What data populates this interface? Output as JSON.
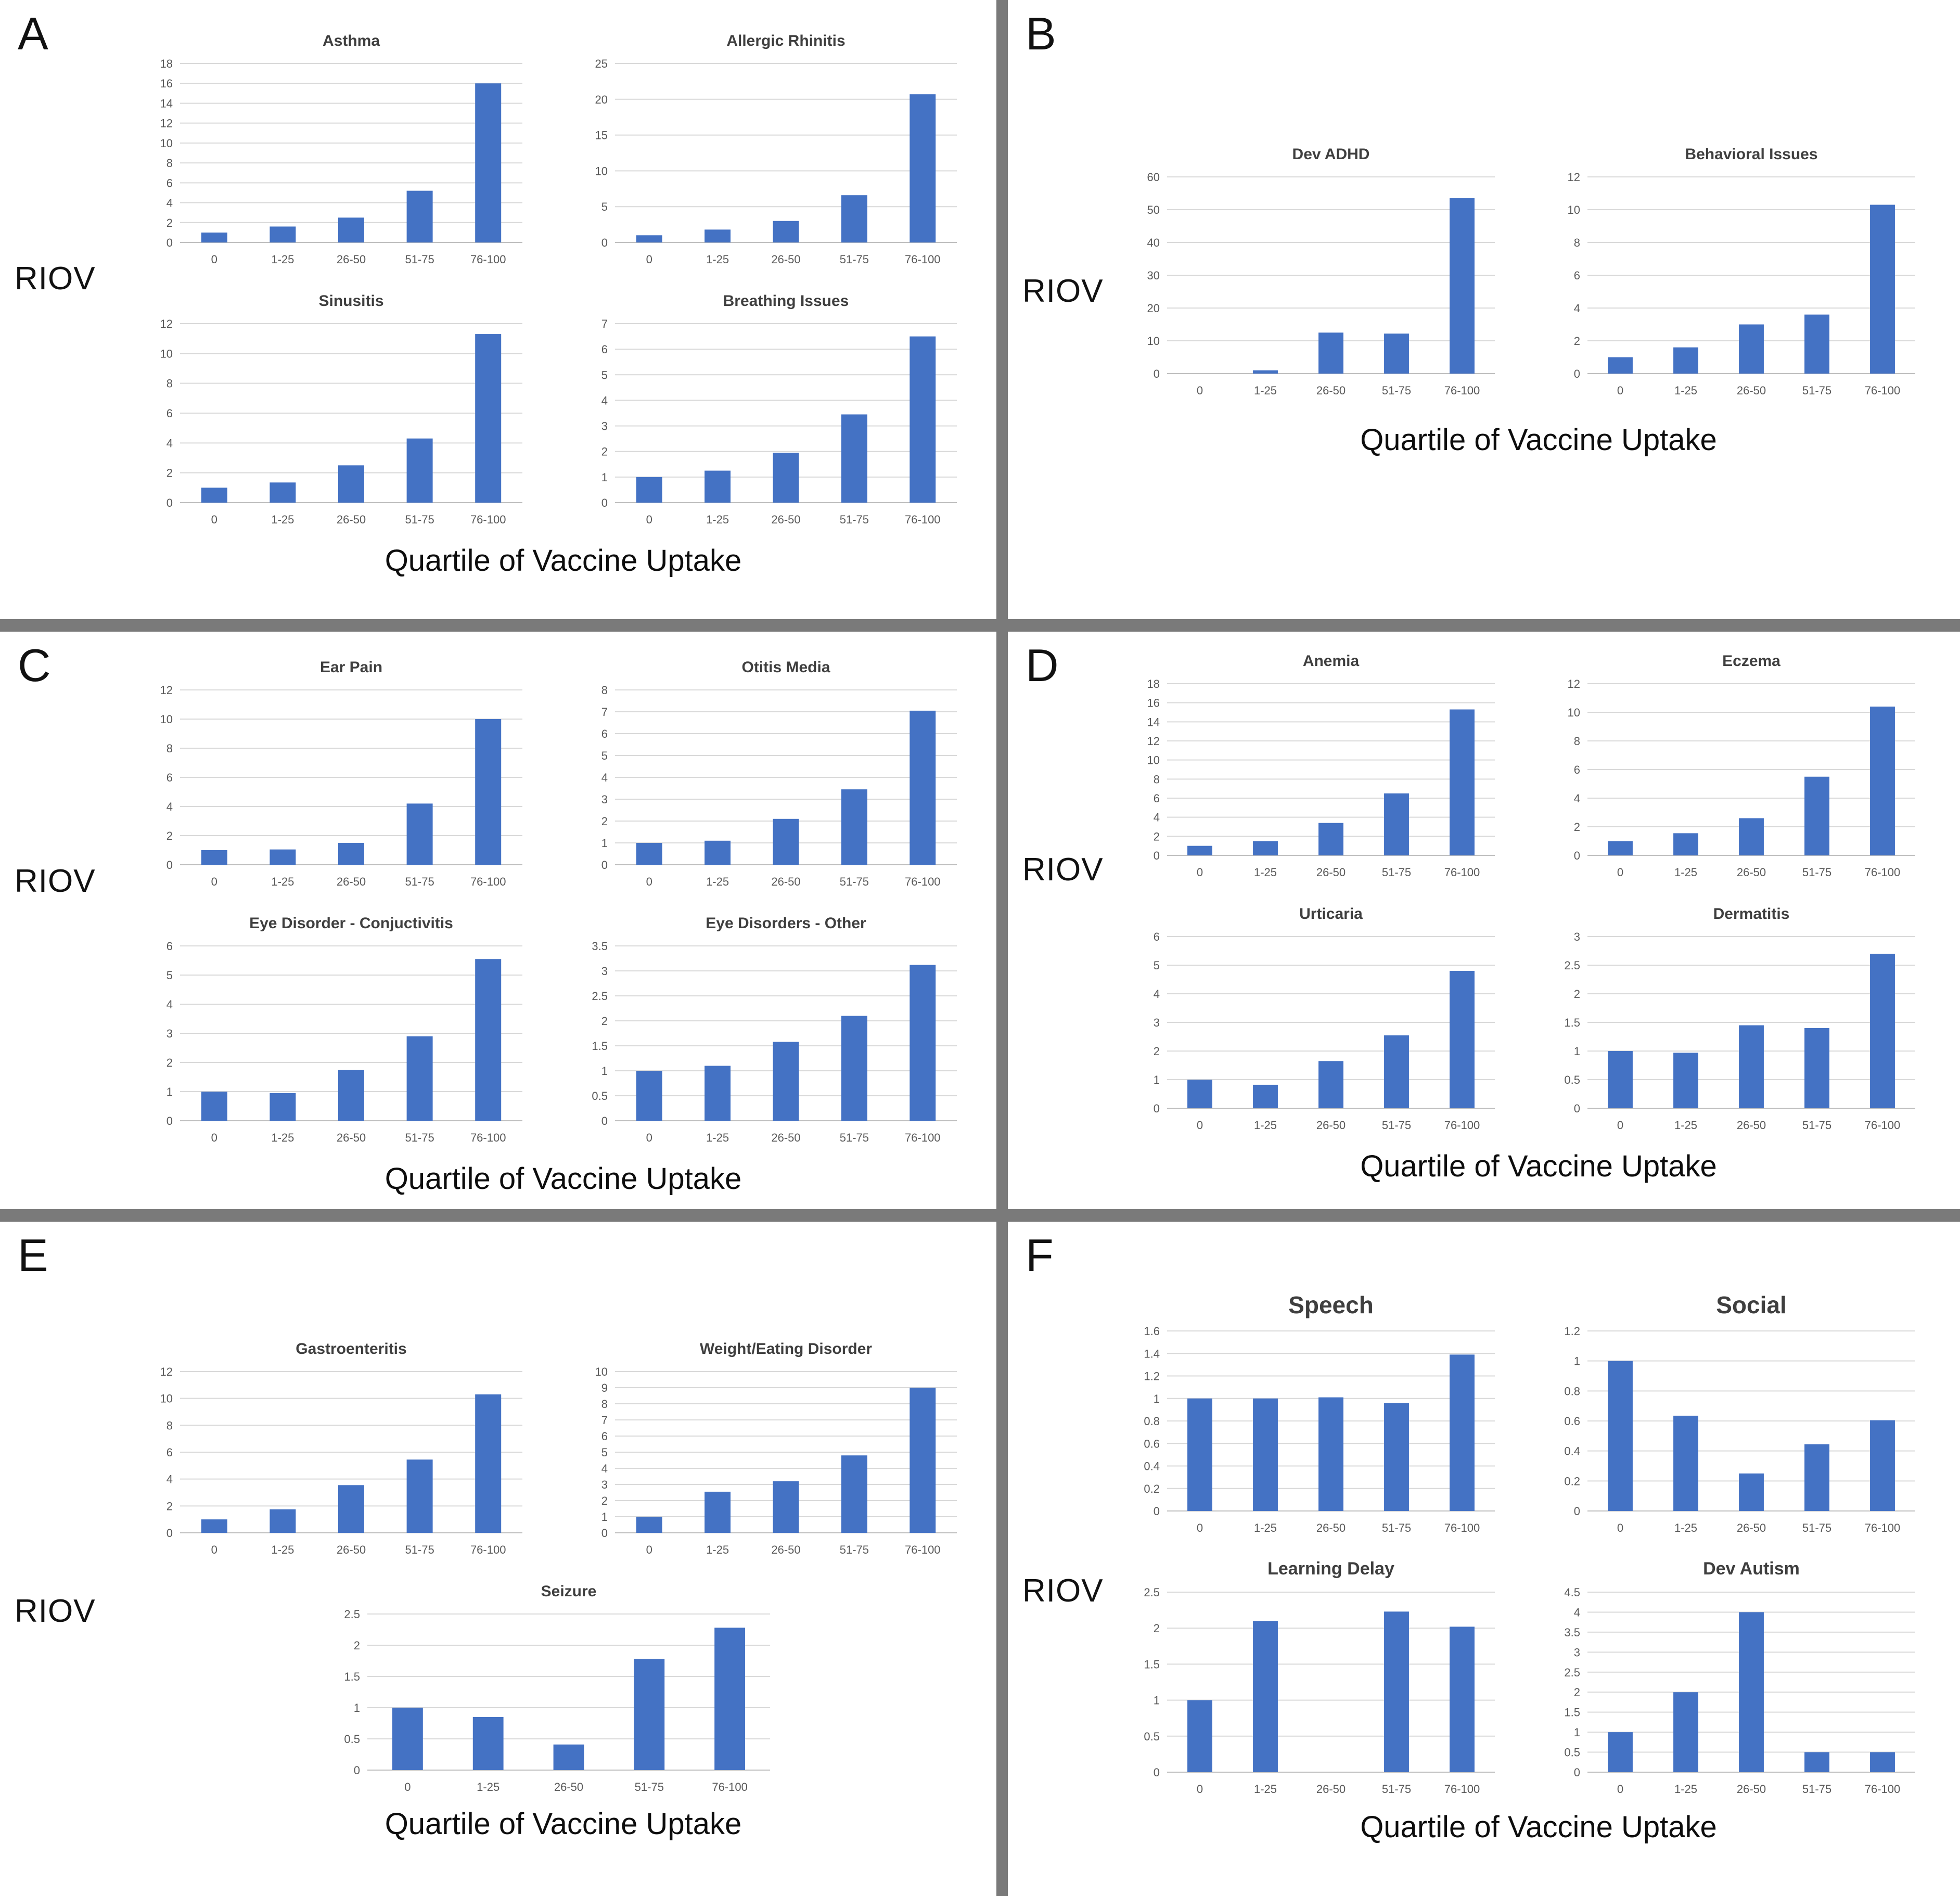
{
  "figure": {
    "xlabel": "Quartile of Vaccine Uptake",
    "ylabel": "RIOV",
    "bar_color": "#4472c4",
    "divider_color": "#7a7a7a",
    "gridline_color": "#d9d9d9",
    "axis_color": "#bfbfbf",
    "tick_color": "#595959",
    "title_color": "#3f3f3f",
    "categories": [
      "0",
      "1-25",
      "26-50",
      "51-75",
      "76-100"
    ]
  },
  "panels": [
    {
      "label": "A",
      "charts": [
        "asthma",
        "allergic_rhinitis",
        "sinusitis",
        "breathing_issues"
      ]
    },
    {
      "label": "B",
      "charts": [
        "dev_adhd",
        "behavioral_issues"
      ]
    },
    {
      "label": "C",
      "charts": [
        "ear_pain",
        "otitis_media",
        "eye_conjuctivitis",
        "eye_other"
      ]
    },
    {
      "label": "D",
      "charts": [
        "anemia",
        "eczema",
        "urticaria",
        "dermatitis"
      ]
    },
    {
      "label": "E",
      "charts": [
        "gastroenteritis",
        "weight_eating",
        "seizure"
      ]
    },
    {
      "label": "F",
      "charts": [
        "speech",
        "social",
        "learning_delay",
        "dev_autism"
      ]
    }
  ],
  "chart_data": [
    {
      "id": "asthma",
      "type": "bar",
      "title": "Asthma",
      "panel": "A",
      "categories": [
        "0",
        "1-25",
        "26-50",
        "51-75",
        "76-100"
      ],
      "values": [
        1,
        1.6,
        2.5,
        5.2,
        16
      ],
      "ylim": [
        0,
        18
      ],
      "ystep": 2
    },
    {
      "id": "allergic_rhinitis",
      "type": "bar",
      "title": "Allergic Rhinitis",
      "panel": "A",
      "categories": [
        "0",
        "1-25",
        "26-50",
        "51-75",
        "76-100"
      ],
      "values": [
        1,
        1.8,
        3,
        6.6,
        20.7
      ],
      "ylim": [
        0,
        25
      ],
      "ystep": 5
    },
    {
      "id": "sinusitis",
      "type": "bar",
      "title": "Sinusitis",
      "panel": "A",
      "categories": [
        "0",
        "1-25",
        "26-50",
        "51-75",
        "76-100"
      ],
      "values": [
        1,
        1.35,
        2.5,
        4.3,
        11.3
      ],
      "ylim": [
        0,
        12
      ],
      "ystep": 2
    },
    {
      "id": "breathing_issues",
      "type": "bar",
      "title": "Breathing Issues",
      "panel": "A",
      "categories": [
        "0",
        "1-25",
        "26-50",
        "51-75",
        "76-100"
      ],
      "values": [
        1,
        1.25,
        1.95,
        3.45,
        6.5
      ],
      "ylim": [
        0,
        7
      ],
      "ystep": 1
    },
    {
      "id": "dev_adhd",
      "type": "bar",
      "title": "Dev ADHD",
      "panel": "B",
      "categories": [
        "0",
        "1-25",
        "26-50",
        "51-75",
        "76-100"
      ],
      "values": [
        0,
        1,
        12.5,
        12.2,
        53.5
      ],
      "ylim": [
        0,
        60
      ],
      "ystep": 10
    },
    {
      "id": "behavioral_issues",
      "type": "bar",
      "title": "Behavioral Issues",
      "panel": "B",
      "categories": [
        "0",
        "1-25",
        "26-50",
        "51-75",
        "76-100"
      ],
      "values": [
        1,
        1.6,
        3,
        3.6,
        10.3
      ],
      "ylim": [
        0,
        12
      ],
      "ystep": 2
    },
    {
      "id": "ear_pain",
      "type": "bar",
      "title": "Ear Pain",
      "panel": "C",
      "categories": [
        "0",
        "1-25",
        "26-50",
        "51-75",
        "76-100"
      ],
      "values": [
        1,
        1.05,
        1.5,
        4.2,
        10
      ],
      "ylim": [
        0,
        12
      ],
      "ystep": 2
    },
    {
      "id": "otitis_media",
      "type": "bar",
      "title": "Otitis Media",
      "panel": "C",
      "categories": [
        "0",
        "1-25",
        "26-50",
        "51-75",
        "76-100"
      ],
      "values": [
        1,
        1.1,
        2.1,
        3.45,
        7.05
      ],
      "ylim": [
        0,
        8
      ],
      "ystep": 1
    },
    {
      "id": "eye_conjuctivitis",
      "type": "bar",
      "title": "Eye Disorder - Conjuctivitis",
      "panel": "C",
      "categories": [
        "0",
        "1-25",
        "26-50",
        "51-75",
        "76-100"
      ],
      "values": [
        1,
        0.95,
        1.75,
        2.9,
        5.55
      ],
      "ylim": [
        0,
        6
      ],
      "ystep": 1
    },
    {
      "id": "eye_other",
      "type": "bar",
      "title": "Eye Disorders - Other",
      "panel": "C",
      "categories": [
        "0",
        "1-25",
        "26-50",
        "51-75",
        "76-100"
      ],
      "values": [
        1,
        1.1,
        1.58,
        2.1,
        3.12
      ],
      "ylim": [
        0,
        3.5
      ],
      "ystep": 0.5
    },
    {
      "id": "anemia",
      "type": "bar",
      "title": "Anemia",
      "panel": "D",
      "categories": [
        "0",
        "1-25",
        "26-50",
        "51-75",
        "76-100"
      ],
      "values": [
        1,
        1.5,
        3.4,
        6.5,
        15.3
      ],
      "ylim": [
        0,
        18
      ],
      "ystep": 2
    },
    {
      "id": "eczema",
      "type": "bar",
      "title": "Eczema",
      "panel": "D",
      "categories": [
        "0",
        "1-25",
        "26-50",
        "51-75",
        "76-100"
      ],
      "values": [
        1,
        1.55,
        2.6,
        5.5,
        10.4
      ],
      "ylim": [
        0,
        12
      ],
      "ystep": 2
    },
    {
      "id": "urticaria",
      "type": "bar",
      "title": "Urticaria",
      "panel": "D",
      "categories": [
        "0",
        "1-25",
        "26-50",
        "51-75",
        "76-100"
      ],
      "values": [
        1,
        0.82,
        1.65,
        2.55,
        4.8
      ],
      "ylim": [
        0,
        6
      ],
      "ystep": 1
    },
    {
      "id": "dermatitis",
      "type": "bar",
      "title": "Dermatitis",
      "panel": "D",
      "categories": [
        "0",
        "1-25",
        "26-50",
        "51-75",
        "76-100"
      ],
      "values": [
        1,
        0.97,
        1.45,
        1.4,
        2.7
      ],
      "ylim": [
        0,
        3
      ],
      "ystep": 0.5
    },
    {
      "id": "gastroenteritis",
      "type": "bar",
      "title": "Gastroenteritis",
      "panel": "E",
      "categories": [
        "0",
        "1-25",
        "26-50",
        "51-75",
        "76-100"
      ],
      "values": [
        1,
        1.75,
        3.55,
        5.45,
        10.3
      ],
      "ylim": [
        0,
        12
      ],
      "ystep": 2
    },
    {
      "id": "weight_eating",
      "type": "bar",
      "title": "Weight/Eating Disorder",
      "panel": "E",
      "categories": [
        "0",
        "1-25",
        "26-50",
        "51-75",
        "76-100"
      ],
      "values": [
        1,
        2.55,
        3.2,
        4.8,
        9
      ],
      "ylim": [
        0,
        10
      ],
      "ystep": 1
    },
    {
      "id": "seizure",
      "type": "bar",
      "title": "Seizure",
      "panel": "E",
      "categories": [
        "0",
        "1-25",
        "26-50",
        "51-75",
        "76-100"
      ],
      "values": [
        1,
        0.85,
        0.41,
        1.78,
        2.28
      ],
      "ylim": [
        0,
        2.5
      ],
      "ystep": 0.5
    },
    {
      "id": "speech",
      "type": "bar",
      "title": "Speech",
      "panel": "F",
      "title_size": 46,
      "categories": [
        "0",
        "1-25",
        "26-50",
        "51-75",
        "76-100"
      ],
      "values": [
        1,
        1,
        1.01,
        0.96,
        1.39
      ],
      "ylim": [
        0,
        1.6
      ],
      "ystep": 0.2
    },
    {
      "id": "social",
      "type": "bar",
      "title": "Social",
      "panel": "F",
      "title_size": 46,
      "categories": [
        "0",
        "1-25",
        "26-50",
        "51-75",
        "76-100"
      ],
      "values": [
        1,
        0.635,
        0.25,
        0.445,
        0.605
      ],
      "ylim": [
        0,
        1.2
      ],
      "ystep": 0.2
    },
    {
      "id": "learning_delay",
      "type": "bar",
      "title": "Learning Delay",
      "panel": "F",
      "title_size": 34,
      "categories": [
        "0",
        "1-25",
        "26-50",
        "51-75",
        "76-100"
      ],
      "values": [
        1,
        2.1,
        0,
        2.23,
        2.02
      ],
      "ylim": [
        0,
        2.5
      ],
      "ystep": 0.5
    },
    {
      "id": "dev_autism",
      "type": "bar",
      "title": "Dev Autism",
      "panel": "F",
      "title_size": 34,
      "categories": [
        "0",
        "1-25",
        "26-50",
        "51-75",
        "76-100"
      ],
      "values": [
        1,
        2,
        4,
        0.5,
        0.5
      ],
      "ylim": [
        0,
        4.5
      ],
      "ystep": 0.5
    }
  ]
}
